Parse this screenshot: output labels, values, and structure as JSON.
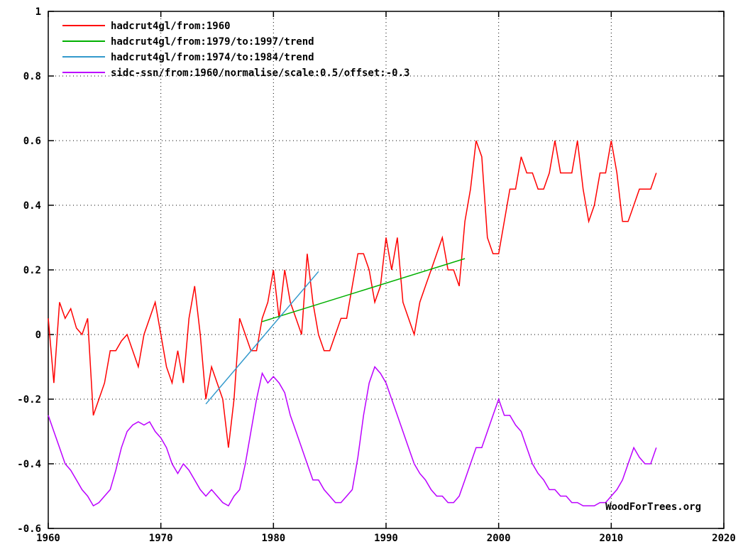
{
  "chart_data": {
    "type": "line",
    "title": "",
    "xlabel": "",
    "ylabel": "",
    "xlim": [
      1960,
      2020
    ],
    "ylim": [
      -0.6,
      1.0
    ],
    "x_ticks": [
      1960,
      1970,
      1980,
      1990,
      2000,
      2010,
      2020
    ],
    "y_ticks": [
      -0.6,
      -0.4,
      -0.2,
      0,
      0.2,
      0.4,
      0.6,
      0.8,
      1
    ],
    "x_tick_labels": [
      "1960",
      "1970",
      "1980",
      "1990",
      "2000",
      "2010",
      "2020"
    ],
    "y_tick_labels": [
      "-0.6",
      "-0.4",
      "-0.2",
      "0",
      "0.2",
      "0.4",
      "0.6",
      "0.8",
      "1"
    ],
    "grid": true,
    "legend_position": "top-left",
    "watermark": "WoodForTrees.org",
    "series": [
      {
        "name": "hadcrut4gl/from:1960",
        "color": "#ff0000",
        "x": [
          1960.0,
          1960.5,
          1961.0,
          1961.5,
          1962.0,
          1962.5,
          1963.0,
          1963.5,
          1964.0,
          1964.5,
          1965.0,
          1965.5,
          1966.0,
          1966.5,
          1967.0,
          1967.5,
          1968.0,
          1968.5,
          1969.0,
          1969.5,
          1970.0,
          1970.5,
          1971.0,
          1971.5,
          1972.0,
          1972.5,
          1973.0,
          1973.5,
          1974.0,
          1974.5,
          1975.0,
          1975.5,
          1976.0,
          1976.5,
          1977.0,
          1977.5,
          1978.0,
          1978.5,
          1979.0,
          1979.5,
          1980.0,
          1980.5,
          1981.0,
          1981.5,
          1982.0,
          1982.5,
          1983.0,
          1983.5,
          1984.0,
          1984.5,
          1985.0,
          1985.5,
          1986.0,
          1986.5,
          1987.0,
          1987.5,
          1988.0,
          1988.5,
          1989.0,
          1989.5,
          1990.0,
          1990.5,
          1991.0,
          1991.5,
          1992.0,
          1992.5,
          1993.0,
          1993.5,
          1994.0,
          1994.5,
          1995.0,
          1995.5,
          1996.0,
          1996.5,
          1997.0,
          1997.5,
          1998.0,
          1998.5,
          1999.0,
          1999.5,
          2000.0,
          2000.5,
          2001.0,
          2001.5,
          2002.0,
          2002.5,
          2003.0,
          2003.5,
          2004.0,
          2004.5,
          2005.0,
          2005.5,
          2006.0,
          2006.5,
          2007.0,
          2007.5,
          2008.0,
          2008.5,
          2009.0,
          2009.5,
          2010.0,
          2010.5,
          2011.0,
          2011.5,
          2012.0,
          2012.5,
          2013.0,
          2013.5,
          2014.0
        ],
        "values": [
          0.05,
          -0.15,
          0.1,
          0.05,
          0.08,
          0.02,
          0.0,
          0.05,
          -0.25,
          -0.2,
          -0.15,
          -0.05,
          -0.05,
          -0.02,
          0.0,
          -0.05,
          -0.1,
          0.0,
          0.05,
          0.1,
          0.0,
          -0.1,
          -0.15,
          -0.05,
          -0.15,
          0.05,
          0.15,
          0.0,
          -0.2,
          -0.1,
          -0.15,
          -0.2,
          -0.35,
          -0.2,
          0.05,
          0.0,
          -0.05,
          -0.05,
          0.05,
          0.1,
          0.2,
          0.05,
          0.2,
          0.1,
          0.05,
          0.0,
          0.25,
          0.1,
          0.0,
          -0.05,
          -0.05,
          0.0,
          0.05,
          0.05,
          0.15,
          0.25,
          0.25,
          0.2,
          0.1,
          0.15,
          0.3,
          0.2,
          0.3,
          0.1,
          0.05,
          0.0,
          0.1,
          0.15,
          0.2,
          0.25,
          0.3,
          0.2,
          0.2,
          0.15,
          0.35,
          0.45,
          0.6,
          0.55,
          0.3,
          0.25,
          0.25,
          0.35,
          0.45,
          0.45,
          0.55,
          0.5,
          0.5,
          0.45,
          0.45,
          0.5,
          0.6,
          0.5,
          0.5,
          0.5,
          0.6,
          0.45,
          0.35,
          0.4,
          0.5,
          0.5,
          0.6,
          0.5,
          0.35,
          0.35,
          0.4,
          0.45,
          0.45,
          0.45,
          0.5
        ]
      },
      {
        "name": "hadcrut4gl/from:1979/to:1997/trend",
        "color": "#00b000",
        "x": [
          1979,
          1997
        ],
        "values": [
          0.04,
          0.235
        ]
      },
      {
        "name": "hadcrut4gl/from:1974/to:1984/trend",
        "color": "#3399cc",
        "x": [
          1974,
          1984
        ],
        "values": [
          -0.215,
          0.195
        ]
      },
      {
        "name": "sidc-ssn/from:1960/normalise/scale:0.5/offset:-0.3",
        "color": "#bb00ff",
        "x": [
          1960.0,
          1960.5,
          1961.0,
          1961.5,
          1962.0,
          1962.5,
          1963.0,
          1963.5,
          1964.0,
          1964.5,
          1965.0,
          1965.5,
          1966.0,
          1966.5,
          1967.0,
          1967.5,
          1968.0,
          1968.5,
          1969.0,
          1969.5,
          1970.0,
          1970.5,
          1971.0,
          1971.5,
          1972.0,
          1972.5,
          1973.0,
          1973.5,
          1974.0,
          1974.5,
          1975.0,
          1975.5,
          1976.0,
          1976.5,
          1977.0,
          1977.5,
          1978.0,
          1978.5,
          1979.0,
          1979.5,
          1980.0,
          1980.5,
          1981.0,
          1981.5,
          1982.0,
          1982.5,
          1983.0,
          1983.5,
          1984.0,
          1984.5,
          1985.0,
          1985.5,
          1986.0,
          1986.5,
          1987.0,
          1987.5,
          1988.0,
          1988.5,
          1989.0,
          1989.5,
          1990.0,
          1990.5,
          1991.0,
          1991.5,
          1992.0,
          1992.5,
          1993.0,
          1993.5,
          1994.0,
          1994.5,
          1995.0,
          1995.5,
          1996.0,
          1996.5,
          1997.0,
          1997.5,
          1998.0,
          1998.5,
          1999.0,
          1999.5,
          2000.0,
          2000.5,
          2001.0,
          2001.5,
          2002.0,
          2002.5,
          2003.0,
          2003.5,
          2004.0,
          2004.5,
          2005.0,
          2005.5,
          2006.0,
          2006.5,
          2007.0,
          2007.5,
          2008.0,
          2008.5,
          2009.0,
          2009.5,
          2010.0,
          2010.5,
          2011.0,
          2011.5,
          2012.0,
          2012.5,
          2013.0,
          2013.5,
          2014.0
        ],
        "values": [
          -0.25,
          -0.3,
          -0.35,
          -0.4,
          -0.42,
          -0.45,
          -0.48,
          -0.5,
          -0.53,
          -0.52,
          -0.5,
          -0.48,
          -0.42,
          -0.35,
          -0.3,
          -0.28,
          -0.27,
          -0.28,
          -0.27,
          -0.3,
          -0.32,
          -0.35,
          -0.4,
          -0.43,
          -0.4,
          -0.42,
          -0.45,
          -0.48,
          -0.5,
          -0.48,
          -0.5,
          -0.52,
          -0.53,
          -0.5,
          -0.48,
          -0.4,
          -0.3,
          -0.2,
          -0.12,
          -0.15,
          -0.13,
          -0.15,
          -0.18,
          -0.25,
          -0.3,
          -0.35,
          -0.4,
          -0.45,
          -0.45,
          -0.48,
          -0.5,
          -0.52,
          -0.52,
          -0.5,
          -0.48,
          -0.38,
          -0.25,
          -0.15,
          -0.1,
          -0.12,
          -0.15,
          -0.2,
          -0.25,
          -0.3,
          -0.35,
          -0.4,
          -0.43,
          -0.45,
          -0.48,
          -0.5,
          -0.5,
          -0.52,
          -0.52,
          -0.5,
          -0.45,
          -0.4,
          -0.35,
          -0.35,
          -0.3,
          -0.25,
          -0.2,
          -0.25,
          -0.25,
          -0.28,
          -0.3,
          -0.35,
          -0.4,
          -0.43,
          -0.45,
          -0.48,
          -0.48,
          -0.5,
          -0.5,
          -0.52,
          -0.52,
          -0.53,
          -0.53,
          -0.53,
          -0.52,
          -0.52,
          -0.5,
          -0.48,
          -0.45,
          -0.4,
          -0.35,
          -0.38,
          -0.4,
          -0.4,
          -0.35
        ]
      }
    ]
  }
}
